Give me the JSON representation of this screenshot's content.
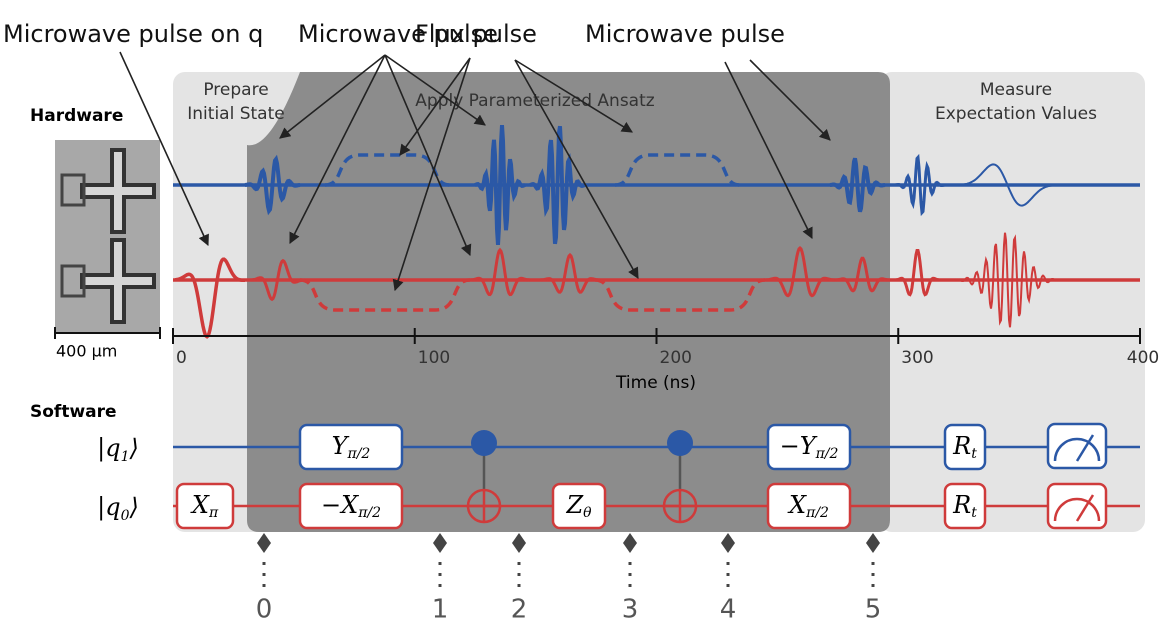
{
  "annotations": {
    "left": "Microwave pulse on q",
    "center_1": "Microwave pulse",
    "center_2": "Flux pulse",
    "right": "Microwave pulse"
  },
  "hardware": {
    "title": "Hardware",
    "scale_bar": "400 μm"
  },
  "stages": {
    "prepare": [
      "Prepare",
      "Initial State"
    ],
    "ansatz": "Apply Parameterized Ansatz",
    "measure": [
      "Measure",
      "Expectation Values"
    ]
  },
  "time_axis": {
    "label": "Time (ns)",
    "ticks": [
      0,
      100,
      200,
      300,
      400
    ]
  },
  "software": {
    "title": "Software",
    "q1": {
      "ket": [
        "|q",
        "1",
        "⟩"
      ],
      "gates": [
        {
          "main": "Y",
          "sub": "π/2"
        },
        {
          "main": "−Y",
          "sub": "π/2"
        },
        {
          "main": "R",
          "sub": "t"
        }
      ]
    },
    "q0": {
      "ket": [
        "|q",
        "0",
        "⟩"
      ],
      "gates": [
        {
          "main": "X",
          "sub": "π"
        },
        {
          "main": "−X",
          "sub": "π/2"
        },
        {
          "main": "Z",
          "sub": "θ"
        },
        {
          "main": "X",
          "sub": "π/2"
        },
        {
          "main": "R",
          "sub": "t"
        }
      ]
    }
  },
  "checkpoints": [
    0,
    1,
    2,
    3,
    4,
    5
  ]
}
